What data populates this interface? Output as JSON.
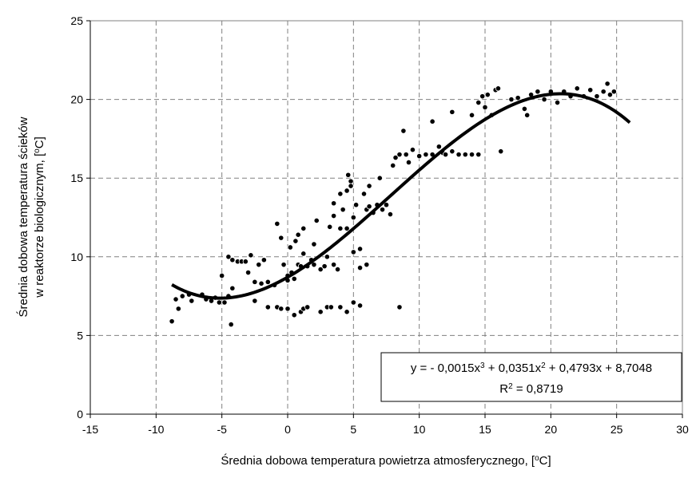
{
  "chart_data": {
    "type": "scatter",
    "xlabel": "Średnia dobowa temperatura powietrza atmosferycznego, [°C]",
    "ylabel_line1": "Średnia dobowa temperatura ścieków",
    "ylabel_line2": "w reaktorze biologicznym, [°C]",
    "xlim": [
      -15,
      30
    ],
    "ylim": [
      0,
      25
    ],
    "x_ticks": [
      -15,
      -10,
      -5,
      0,
      5,
      10,
      15,
      20,
      25,
      30
    ],
    "y_ticks": [
      0,
      5,
      10,
      15,
      20,
      25
    ],
    "grid": true,
    "trendline": {
      "type": "polynomial",
      "coefficients": [
        -0.0015,
        0.0351,
        0.4793,
        8.7048
      ],
      "x_range": [
        -8.8,
        26
      ],
      "equation_text": "y = - 0,0015x3 + 0,0351x2 + 0,4793x + 8,7048",
      "r2_text": "R2 = 0,8719"
    },
    "series": [
      {
        "points": [
          [
            -8.8,
            5.9
          ],
          [
            -8.5,
            7.3
          ],
          [
            -8.3,
            6.7
          ],
          [
            -8.0,
            7.5
          ],
          [
            -7.5,
            7.6
          ],
          [
            -7.3,
            7.2
          ],
          [
            -6.5,
            7.6
          ],
          [
            -6.2,
            7.3
          ],
          [
            -5.8,
            7.2
          ],
          [
            -5.5,
            7.4
          ],
          [
            -5.2,
            7.1
          ],
          [
            -5.0,
            8.8
          ],
          [
            -4.8,
            7.1
          ],
          [
            -4.5,
            7.5
          ],
          [
            -4.3,
            5.7
          ],
          [
            -4.2,
            8.0
          ],
          [
            -4.5,
            10.0
          ],
          [
            -4.2,
            9.8
          ],
          [
            -3.8,
            9.7
          ],
          [
            -3.5,
            9.7
          ],
          [
            -3.2,
            9.7
          ],
          [
            -3.0,
            9.0
          ],
          [
            -2.8,
            10.1
          ],
          [
            -2.5,
            7.2
          ],
          [
            -2.5,
            8.4
          ],
          [
            -2.2,
            9.5
          ],
          [
            -2.0,
            8.3
          ],
          [
            -1.8,
            9.8
          ],
          [
            -1.5,
            6.8
          ],
          [
            -1.5,
            8.4
          ],
          [
            -1.0,
            8.2
          ],
          [
            -0.8,
            6.8
          ],
          [
            -0.8,
            12.1
          ],
          [
            -0.5,
            6.7
          ],
          [
            -0.5,
            11.2
          ],
          [
            -0.3,
            9.5
          ],
          [
            0.0,
            6.7
          ],
          [
            0.0,
            8.5
          ],
          [
            0.0,
            8.8
          ],
          [
            0.2,
            10.6
          ],
          [
            0.3,
            9.0
          ],
          [
            0.5,
            6.3
          ],
          [
            0.5,
            8.6
          ],
          [
            0.6,
            11.0
          ],
          [
            0.8,
            9.5
          ],
          [
            0.8,
            11.4
          ],
          [
            1.0,
            6.5
          ],
          [
            1.0,
            9.4
          ],
          [
            1.2,
            6.7
          ],
          [
            1.2,
            10.2
          ],
          [
            1.2,
            11.8
          ],
          [
            1.5,
            6.8
          ],
          [
            1.5,
            9.4
          ],
          [
            1.8,
            9.8
          ],
          [
            2.0,
            9.5
          ],
          [
            2.0,
            10.8
          ],
          [
            2.2,
            12.3
          ],
          [
            2.5,
            6.5
          ],
          [
            2.5,
            9.2
          ],
          [
            2.8,
            9.4
          ],
          [
            3.0,
            6.8
          ],
          [
            3.0,
            10.0
          ],
          [
            3.2,
            11.9
          ],
          [
            3.3,
            6.8
          ],
          [
            3.5,
            9.5
          ],
          [
            3.5,
            12.6
          ],
          [
            3.5,
            13.4
          ],
          [
            3.8,
            9.2
          ],
          [
            4.0,
            6.8
          ],
          [
            4.0,
            11.8
          ],
          [
            4.0,
            14.0
          ],
          [
            4.2,
            13.0
          ],
          [
            4.5,
            6.5
          ],
          [
            4.5,
            11.8
          ],
          [
            4.5,
            14.2
          ],
          [
            4.6,
            15.2
          ],
          [
            4.8,
            14.8
          ],
          [
            4.8,
            14.5
          ],
          [
            5.0,
            7.1
          ],
          [
            5.0,
            10.3
          ],
          [
            5.0,
            12.5
          ],
          [
            5.2,
            13.3
          ],
          [
            5.5,
            6.9
          ],
          [
            5.5,
            9.3
          ],
          [
            5.5,
            10.5
          ],
          [
            5.8,
            14.0
          ],
          [
            6.0,
            9.5
          ],
          [
            6.0,
            13.0
          ],
          [
            6.2,
            13.2
          ],
          [
            6.2,
            14.5
          ],
          [
            6.5,
            12.8
          ],
          [
            6.8,
            13.3
          ],
          [
            7.0,
            15.0
          ],
          [
            7.2,
            13.0
          ],
          [
            7.5,
            13.3
          ],
          [
            7.8,
            12.7
          ],
          [
            8.0,
            15.8
          ],
          [
            8.2,
            16.3
          ],
          [
            8.5,
            6.8
          ],
          [
            8.5,
            16.5
          ],
          [
            8.8,
            18.0
          ],
          [
            9.0,
            16.5
          ],
          [
            9.2,
            16.0
          ],
          [
            9.5,
            16.8
          ],
          [
            10.0,
            16.4
          ],
          [
            10.5,
            16.5
          ],
          [
            11.0,
            18.6
          ],
          [
            11.0,
            16.5
          ],
          [
            11.5,
            17.0
          ],
          [
            11.8,
            16.6
          ],
          [
            12.0,
            16.5
          ],
          [
            12.5,
            19.2
          ],
          [
            12.5,
            16.7
          ],
          [
            13.0,
            16.5
          ],
          [
            13.5,
            16.5
          ],
          [
            14.0,
            16.5
          ],
          [
            14.5,
            16.5
          ],
          [
            14.0,
            19.0
          ],
          [
            14.5,
            19.8
          ],
          [
            14.8,
            20.2
          ],
          [
            15.0,
            19.5
          ],
          [
            15.2,
            20.3
          ],
          [
            15.5,
            19.0
          ],
          [
            15.8,
            20.6
          ],
          [
            16.0,
            20.7
          ],
          [
            16.2,
            16.7
          ],
          [
            17.0,
            20.0
          ],
          [
            17.5,
            20.1
          ],
          [
            18.0,
            19.4
          ],
          [
            18.2,
            19.0
          ],
          [
            18.5,
            20.3
          ],
          [
            19.0,
            20.5
          ],
          [
            19.5,
            20.0
          ],
          [
            20.0,
            20.5
          ],
          [
            20.5,
            19.8
          ],
          [
            21.0,
            20.5
          ],
          [
            21.5,
            20.2
          ],
          [
            22.0,
            20.7
          ],
          [
            22.5,
            20.2
          ],
          [
            23.0,
            20.6
          ],
          [
            23.5,
            20.2
          ],
          [
            24.0,
            20.5
          ],
          [
            24.3,
            21.0
          ],
          [
            24.5,
            20.3
          ],
          [
            24.8,
            20.5
          ]
        ]
      }
    ]
  }
}
